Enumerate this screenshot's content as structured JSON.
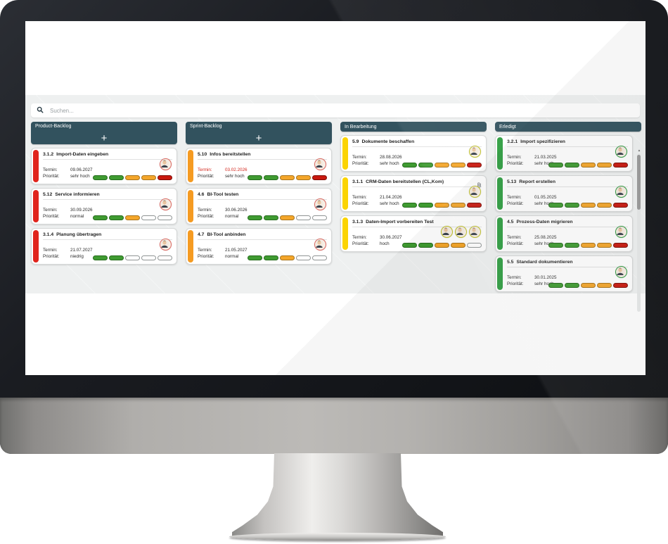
{
  "search": {
    "placeholder": "Suchen..."
  },
  "labels": {
    "termin": "Termin:",
    "prioritaet": "Priorität:",
    "add": "+"
  },
  "colors": {
    "header_teal": "#32525e",
    "board_bg": "#eef0f0",
    "pill_green": "#3f9b31",
    "pill_yellow": "#f4a62a",
    "pill_red": "#c9190f",
    "overdue_red": "#d3261c"
  },
  "board": {
    "columns": [
      {
        "title": "Product-Backlog",
        "has_add": true,
        "scrollbar": false,
        "accent": "#e0241c",
        "ring": "#e06a63",
        "cards": [
          {
            "id": "3.1.2",
            "title": "Import-Daten eingeben",
            "termin": "09.06.2027",
            "prioritaet": "sehr hoch",
            "overdue": false,
            "attachment": false,
            "avatars": 1,
            "pills": [
              "green",
              "green",
              "yellow",
              "yellow",
              "red"
            ]
          },
          {
            "id": "5.12",
            "title": "Service informieren",
            "termin": "30.09.2026",
            "prioritaet": "normal",
            "overdue": false,
            "attachment": false,
            "avatars": 1,
            "pills": [
              "green",
              "green",
              "yellow",
              "empty",
              "empty"
            ]
          },
          {
            "id": "3.1.4",
            "title": "Planung übertragen",
            "termin": "21.07.2027",
            "prioritaet": "niedrig",
            "overdue": false,
            "attachment": false,
            "avatars": 1,
            "pills": [
              "green",
              "green",
              "empty",
              "empty",
              "empty"
            ]
          }
        ]
      },
      {
        "title": "Sprint-Backlog",
        "has_add": true,
        "scrollbar": false,
        "accent": "#f59b22",
        "ring": "#e06a63",
        "cards": [
          {
            "id": "5.10",
            "title": "Infos bereitstellen",
            "termin": "03.02.2026",
            "prioritaet": "sehr hoch",
            "overdue": true,
            "attachment": false,
            "avatars": 1,
            "pills": [
              "green",
              "green",
              "yellow",
              "yellow",
              "red"
            ]
          },
          {
            "id": "4.6",
            "title": "BI-Tool testen",
            "termin": "30.06.2026",
            "prioritaet": "normal",
            "overdue": false,
            "attachment": false,
            "avatars": 1,
            "pills": [
              "green",
              "green",
              "yellow",
              "empty",
              "empty"
            ]
          },
          {
            "id": "4.7",
            "title": "BI-Tool anbinden",
            "termin": "21.05.2027",
            "prioritaet": "normal",
            "overdue": false,
            "attachment": false,
            "avatars": 1,
            "pills": [
              "green",
              "green",
              "yellow",
              "empty",
              "empty"
            ]
          }
        ]
      },
      {
        "title": "In Bearbeitung",
        "has_add": false,
        "scrollbar": false,
        "accent": "#fbd403",
        "ring": "#c3c427",
        "cards": [
          {
            "id": "5.9",
            "title": "Dokumente beschaffen",
            "termin": "28.08.2026",
            "prioritaet": "sehr hoch",
            "overdue": false,
            "attachment": false,
            "avatars": 1,
            "pills": [
              "green",
              "green",
              "yellow",
              "yellow",
              "red"
            ]
          },
          {
            "id": "3.1.1",
            "title": "CRM-Daten bereitstellen (CL,Kom)",
            "termin": "21.04.2026",
            "prioritaet": "sehr hoch",
            "overdue": false,
            "attachment": true,
            "avatars": 1,
            "pills": [
              "green",
              "green",
              "yellow",
              "yellow",
              "red"
            ]
          },
          {
            "id": "3.1.3",
            "title": "Daten-Import vorbereiten Test",
            "termin": "30.06.2027",
            "prioritaet": "hoch",
            "overdue": false,
            "attachment": false,
            "avatars": 3,
            "pills": [
              "green",
              "green",
              "yellow",
              "yellow",
              "empty"
            ]
          }
        ]
      },
      {
        "title": "Erledigt",
        "has_add": false,
        "scrollbar": true,
        "accent": "#2f9e41",
        "ring": "#2f9e41",
        "cards": [
          {
            "id": "3.2.1",
            "title": "Import spezifizieren",
            "termin": "21.03.2025",
            "prioritaet": "sehr hoch",
            "overdue": false,
            "attachment": false,
            "avatars": 1,
            "pills": [
              "green",
              "green",
              "yellow",
              "yellow",
              "red"
            ]
          },
          {
            "id": "5.13",
            "title": "Report erstellen",
            "termin": "01.05.2025",
            "prioritaet": "sehr hoch",
            "overdue": false,
            "attachment": false,
            "avatars": 1,
            "pills": [
              "green",
              "green",
              "yellow",
              "yellow",
              "red"
            ]
          },
          {
            "id": "4.5",
            "title": "Prozess-Daten migrieren",
            "termin": "25.08.2025",
            "prioritaet": "sehr hoch",
            "overdue": false,
            "attachment": false,
            "avatars": 1,
            "pills": [
              "green",
              "green",
              "yellow",
              "yellow",
              "red"
            ]
          },
          {
            "id": "5.5",
            "title": "Standard dokumentieren",
            "termin": "30.01.2025",
            "prioritaet": "sehr hoch",
            "overdue": false,
            "attachment": false,
            "avatars": 1,
            "pills": [
              "green",
              "green",
              "yellow",
              "yellow",
              "red"
            ]
          }
        ]
      }
    ]
  },
  "scrollbar": {
    "up_arrow": "▲"
  }
}
